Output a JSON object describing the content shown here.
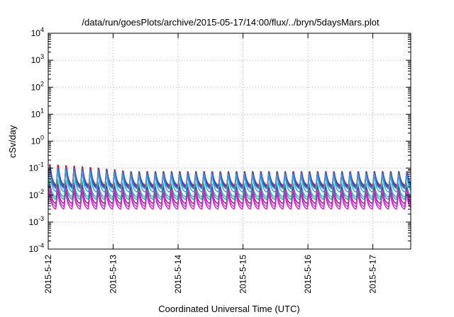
{
  "chart_data": {
    "type": "line",
    "title": "/data/run/goesPlots/archive/2015-05-17/14:00/flux/../bryn/5daysMars.plot",
    "xlabel": "Coordinated Universal Time (UTC)",
    "ylabel": "cSv/day",
    "y_scale": "log",
    "ylim": [
      0.0001,
      10000
    ],
    "xlim": [
      "2015-05-12T00:00",
      "2015-05-17T14:00"
    ],
    "x_ticks": [
      "2015-5-12",
      "2015-5-13",
      "2015-5-14",
      "2015-5-15",
      "2015-5-16",
      "2015-5-17"
    ],
    "y_ticks": [
      {
        "base": "10",
        "exp": "4"
      },
      {
        "base": "10",
        "exp": "3"
      },
      {
        "base": "10",
        "exp": "2"
      },
      {
        "base": "10",
        "exp": "1"
      },
      {
        "base": "10",
        "exp": "0"
      },
      {
        "base": "10",
        "exp": "-1"
      },
      {
        "base": "10",
        "exp": "-2"
      },
      {
        "base": "10",
        "exp": "-3"
      },
      {
        "base": "10",
        "exp": "-4"
      }
    ],
    "grid": true,
    "pattern": {
      "period_hours": 3,
      "rise_fraction": 0.2,
      "note_omitted": true
    },
    "series": [
      {
        "color": "#e0201e",
        "peak": 0.095,
        "trough": 0.022,
        "early_peak": 0.2
      },
      {
        "color": "#c01a3a",
        "peak": 0.085,
        "trough": 0.018,
        "early_peak": 0.17
      },
      {
        "color": "#1b55c8",
        "peak": 0.085,
        "trough": 0.02,
        "early_peak": 0.15
      },
      {
        "color": "#2a7fe0",
        "peak": 0.075,
        "trough": 0.016,
        "early_peak": 0.13
      },
      {
        "color": "#3a9fe8",
        "peak": 0.06,
        "trough": 0.012,
        "early_peak": 0.1
      },
      {
        "color": "#1fc4b8",
        "peak": 0.028,
        "trough": 0.008,
        "early_peak": 0.04
      },
      {
        "color": "#20a890",
        "peak": 0.024,
        "trough": 0.0065,
        "early_peak": 0.032
      },
      {
        "color": "#9a1a8a",
        "peak": 0.02,
        "trough": 0.0045,
        "early_peak": 0.026
      },
      {
        "color": "#e030e0",
        "peak": 0.016,
        "trough": 0.0035,
        "early_peak": 0.02
      },
      {
        "color": "#c828c8",
        "peak": 0.013,
        "trough": 0.0028,
        "early_peak": 0.016
      }
    ]
  }
}
